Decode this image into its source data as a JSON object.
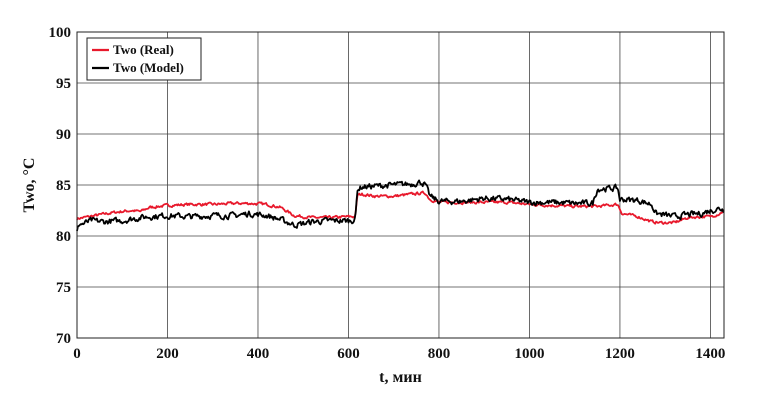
{
  "chart_data": {
    "type": "line",
    "title": "",
    "xlabel": "t, мин",
    "ylabel": "Two, °C",
    "xlim": [
      0,
      1430
    ],
    "ylim": [
      70,
      100
    ],
    "x_ticks": [
      0,
      200,
      400,
      600,
      800,
      1000,
      1200,
      1400
    ],
    "y_ticks": [
      70,
      75,
      80,
      85,
      90,
      95,
      100
    ],
    "x_tick_labels": [
      "0",
      "200",
      "400",
      "600",
      "800",
      "1000",
      "1200",
      "1400"
    ],
    "y_tick_labels": [
      "70",
      "75",
      "80",
      "85",
      "90",
      "95",
      "100"
    ],
    "grid": true,
    "legend_position": "top-left",
    "series": [
      {
        "name": "Two (Real)",
        "color": "#e8192c",
        "x": [
          0,
          40,
          80,
          120,
          140,
          160,
          200,
          250,
          300,
          350,
          380,
          420,
          450,
          480,
          520,
          560,
          600,
          615,
          620,
          630,
          660,
          700,
          740,
          760,
          770,
          780,
          800,
          850,
          900,
          950,
          1000,
          1050,
          1100,
          1150,
          1195,
          1205,
          1240,
          1270,
          1290,
          1320,
          1350,
          1380,
          1400,
          1420,
          1430
        ],
        "values": [
          81.7,
          82.0,
          82.3,
          82.5,
          82.4,
          82.8,
          83.0,
          83.1,
          83.1,
          83.2,
          83.2,
          83.1,
          82.8,
          82.0,
          81.8,
          81.8,
          81.9,
          81.9,
          84.0,
          84.1,
          83.9,
          83.9,
          84.1,
          84.2,
          84.2,
          83.6,
          83.3,
          83.3,
          83.3,
          83.3,
          83.1,
          83.0,
          82.9,
          82.9,
          83.1,
          82.2,
          81.9,
          81.4,
          81.3,
          81.3,
          81.8,
          81.9,
          81.9,
          82.2,
          82.5
        ]
      },
      {
        "name": "Two (Model)",
        "color": "#000000",
        "x": [
          0,
          5,
          15,
          30,
          60,
          100,
          140,
          160,
          200,
          250,
          300,
          350,
          380,
          420,
          450,
          480,
          500,
          520,
          560,
          600,
          615,
          620,
          630,
          660,
          700,
          740,
          760,
          770,
          780,
          800,
          850,
          900,
          950,
          1000,
          1050,
          1100,
          1140,
          1150,
          1195,
          1200,
          1240,
          1270,
          1280,
          1320,
          1350,
          1380,
          1400,
          1420,
          1430
        ],
        "values": [
          80.4,
          81.2,
          81.2,
          81.5,
          81.4,
          81.5,
          81.8,
          81.9,
          82.0,
          81.9,
          82.0,
          82.0,
          82.2,
          82.0,
          81.6,
          81.1,
          81.2,
          81.4,
          81.5,
          81.5,
          81.6,
          84.6,
          84.8,
          84.9,
          85.0,
          85.1,
          85.3,
          85.0,
          83.9,
          83.4,
          83.4,
          83.7,
          83.6,
          83.3,
          83.3,
          83.2,
          83.2,
          84.6,
          84.7,
          83.6,
          83.5,
          83.1,
          82.2,
          81.9,
          82.1,
          82.2,
          82.5,
          82.7,
          82.6
        ]
      }
    ]
  }
}
